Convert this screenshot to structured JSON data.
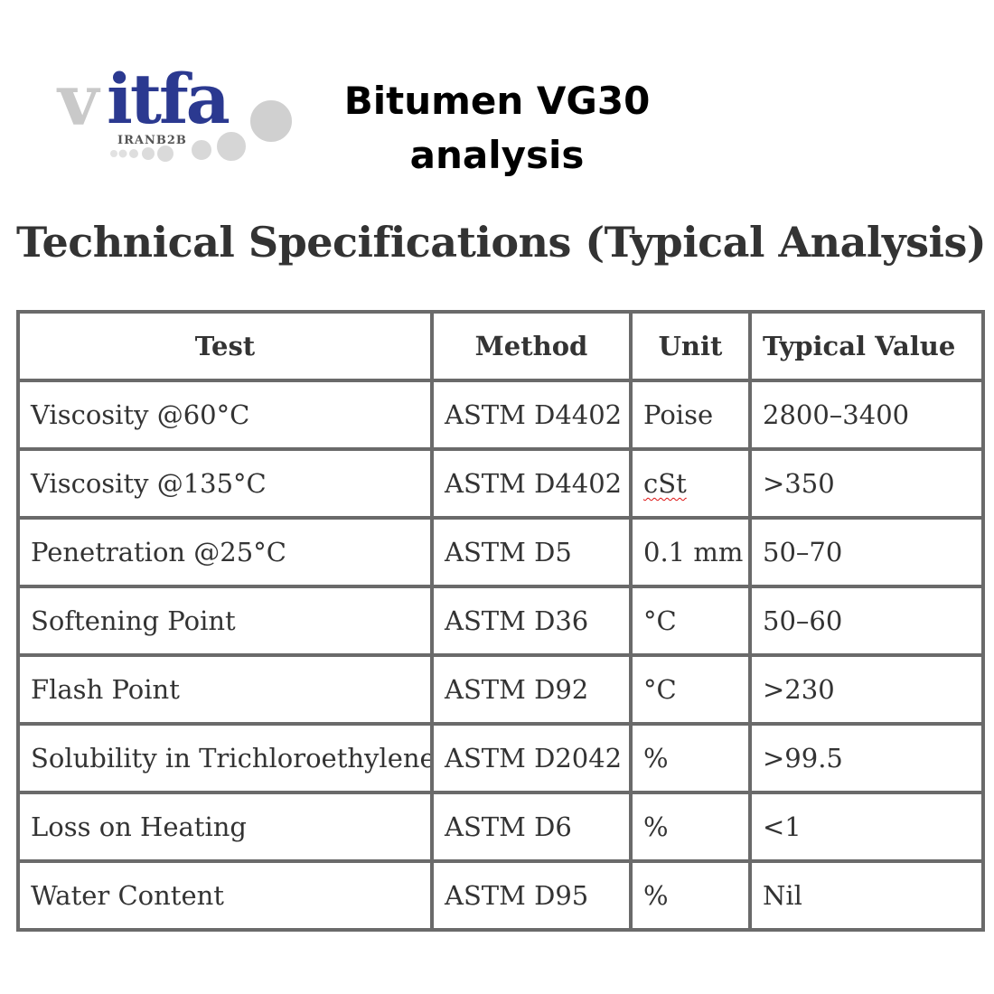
{
  "logo": {
    "brand": "vitfa",
    "brand_prefix": "v",
    "brand_rest": "itfa",
    "subtitle": "IRANB2B"
  },
  "document": {
    "title_line1": "Bitumen VG30",
    "title_line2": "analysis",
    "section_title": "Technical Specifications (Typical Analysis)"
  },
  "table": {
    "headers": [
      "Test",
      "Method",
      "Unit",
      "Typical Value"
    ],
    "rows": [
      {
        "test": "Viscosity @60°C",
        "method": "ASTM D4402",
        "unit": "Poise",
        "value": "2800–3400"
      },
      {
        "test": "Viscosity @135°C",
        "method": "ASTM D4402",
        "unit": "cSt",
        "value": ">350"
      },
      {
        "test": "Penetration @25°C",
        "method": "ASTM D5",
        "unit": "0.1 mm",
        "value": "50–70"
      },
      {
        "test": "Softening Point",
        "method": "ASTM D36",
        "unit": "°C",
        "value": "50–60"
      },
      {
        "test": "Flash Point",
        "method": "ASTM D92",
        "unit": "°C",
        "value": ">230"
      },
      {
        "test": "Solubility in Trichloroethylene",
        "method": "ASTM D2042",
        "unit": "%",
        "value": ">99.5"
      },
      {
        "test": "Loss on Heating",
        "method": "ASTM D6",
        "unit": "%",
        "value": "<1"
      },
      {
        "test": "Water Content",
        "method": "ASTM D95",
        "unit": "%",
        "value": "Nil"
      }
    ]
  },
  "colors": {
    "logo_blue": "#2b3990",
    "logo_grey": "#c8c8c8",
    "text": "#333333",
    "border": "#6a6a6a"
  }
}
